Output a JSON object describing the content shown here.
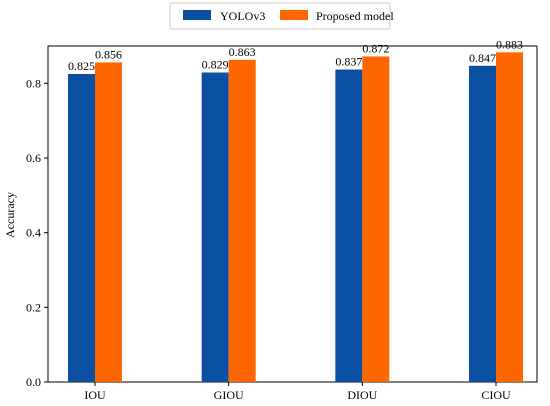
{
  "chart_data": {
    "type": "bar",
    "categories": [
      "IOU",
      "GIOU",
      "DIOU",
      "CIOU"
    ],
    "series": [
      {
        "name": "YOLOv3",
        "values": [
          0.825,
          0.829,
          0.837,
          0.847
        ],
        "labels": [
          "0.825",
          "0.829",
          "0.837",
          "0.847"
        ],
        "color": "#0b4fa3"
      },
      {
        "name": "Proposed model",
        "values": [
          0.856,
          0.863,
          0.872,
          0.883
        ],
        "labels": [
          "0.856",
          "0.863",
          "0.872",
          "0.883"
        ],
        "color": "#ff6600"
      }
    ],
    "ylabel": "Accuracy",
    "xlabel": "",
    "ylim": [
      0,
      0.9
    ],
    "yticks": [
      0.0,
      0.2,
      0.4,
      0.6,
      0.8
    ],
    "ytick_labels": [
      "0.0",
      "0.2",
      "0.4",
      "0.6",
      "0.8"
    ],
    "legend_position": "top-center",
    "grid": false
  }
}
